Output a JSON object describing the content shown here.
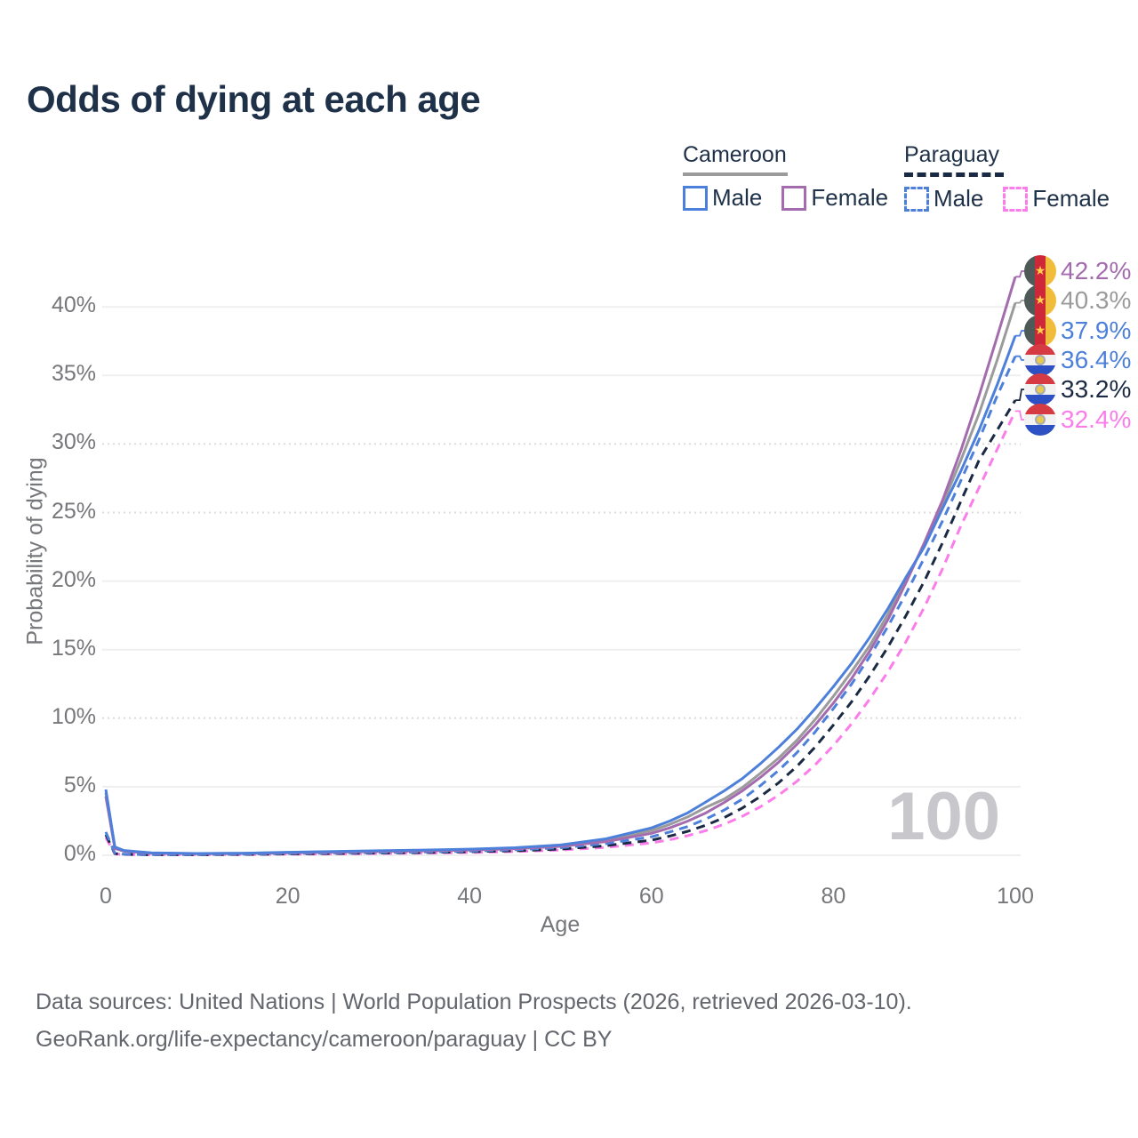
{
  "title": "Odds of dying at each age",
  "watermark": "100",
  "legend": {
    "groups": [
      {
        "name": "Cameroon",
        "line_style": "solid",
        "underline_color": "#9b9b9b",
        "items": [
          {
            "label": "Male",
            "color": "#4d80da"
          },
          {
            "label": "Female",
            "color": "#a46cae"
          }
        ]
      },
      {
        "name": "Paraguay",
        "line_style": "dashed",
        "underline_color": "#1b2a44",
        "items": [
          {
            "label": "Male",
            "color": "#4d80da"
          },
          {
            "label": "Female",
            "color": "#fb7de9"
          }
        ]
      }
    ]
  },
  "axes": {
    "y_label": "Probability of dying",
    "x_label": "Age",
    "y_ticks": [
      {
        "label": "0%",
        "value": 0,
        "dotted": false
      },
      {
        "label": "5%",
        "value": 5,
        "dotted": false
      },
      {
        "label": "10%",
        "value": 10,
        "dotted": true
      },
      {
        "label": "15%",
        "value": 15,
        "dotted": false
      },
      {
        "label": "20%",
        "value": 20,
        "dotted": false
      },
      {
        "label": "25%",
        "value": 25,
        "dotted": true
      },
      {
        "label": "30%",
        "value": 30,
        "dotted": true
      },
      {
        "label": "35%",
        "value": 35,
        "dotted": false
      },
      {
        "label": "40%",
        "value": 40,
        "dotted": false
      }
    ],
    "x_ticks": [
      {
        "label": "0",
        "value": 0
      },
      {
        "label": "20",
        "value": 20
      },
      {
        "label": "40",
        "value": 40
      },
      {
        "label": "60",
        "value": 60
      },
      {
        "label": "80",
        "value": 80
      },
      {
        "label": "100",
        "value": 100
      }
    ]
  },
  "end_labels": [
    {
      "text": "42.2%",
      "value": 42.2,
      "color": "#a46cae",
      "flag": "cameroon",
      "series": "Cameroon Female"
    },
    {
      "text": "40.3%",
      "value": 40.3,
      "color": "#9b9b9b",
      "flag": "cameroon",
      "series": "Cameroon Both sexes"
    },
    {
      "text": "37.9%",
      "value": 37.9,
      "color": "#4d80da",
      "flag": "cameroon",
      "series": "Cameroon Male"
    },
    {
      "text": "36.4%",
      "value": 36.4,
      "color": "#4d80da",
      "flag": "paraguay",
      "series": "Paraguay Male"
    },
    {
      "text": "33.2%",
      "value": 33.2,
      "color": "#1b2a44",
      "flag": "paraguay",
      "series": "Paraguay Both sexes"
    },
    {
      "text": "32.4%",
      "value": 32.4,
      "color": "#fb7de9",
      "flag": "paraguay",
      "series": "Paraguay Female"
    }
  ],
  "footer": {
    "line1": "Data sources: United Nations | World Population Prospects (2026, retrieved 2026-03-10).",
    "line2": "GeoRank.org/life-expectancy/cameroon/paraguay | CC BY"
  },
  "chart_data": {
    "type": "line",
    "title": "Odds of dying at each age",
    "xlabel": "Age",
    "ylabel": "Probability of dying",
    "xlim": [
      0,
      100
    ],
    "ylim_pct": [
      0,
      43
    ],
    "grid": true,
    "legend_position": "top-right",
    "series": [
      {
        "name": "Paraguay Female",
        "color": "#fb7de9",
        "dashed": true,
        "end_value_pct": 32.4,
        "points": [
          [
            0,
            1.3
          ],
          [
            1,
            0.1
          ],
          [
            2,
            0.06
          ],
          [
            5,
            0.04
          ],
          [
            10,
            0.04
          ],
          [
            15,
            0.05
          ],
          [
            20,
            0.08
          ],
          [
            25,
            0.1
          ],
          [
            30,
            0.13
          ],
          [
            35,
            0.16
          ],
          [
            40,
            0.2
          ],
          [
            45,
            0.27
          ],
          [
            50,
            0.38
          ],
          [
            55,
            0.58
          ],
          [
            60,
            0.9
          ],
          [
            62,
            1.13
          ],
          [
            64,
            1.43
          ],
          [
            66,
            1.8
          ],
          [
            68,
            2.27
          ],
          [
            70,
            2.85
          ],
          [
            72,
            3.55
          ],
          [
            74,
            4.4
          ],
          [
            76,
            5.4
          ],
          [
            78,
            6.6
          ],
          [
            80,
            8.0
          ],
          [
            82,
            9.6
          ],
          [
            84,
            11.4
          ],
          [
            86,
            13.4
          ],
          [
            88,
            15.6
          ],
          [
            90,
            18.1
          ],
          [
            92,
            20.9
          ],
          [
            94,
            24.0
          ],
          [
            96,
            26.8
          ],
          [
            98,
            29.6
          ],
          [
            100,
            32.4
          ]
        ]
      },
      {
        "name": "Paraguay Both sexes",
        "color": "#1b2a44",
        "dashed": true,
        "end_value_pct": 33.2,
        "points": [
          [
            0,
            1.5
          ],
          [
            1,
            0.12
          ],
          [
            2,
            0.07
          ],
          [
            5,
            0.04
          ],
          [
            10,
            0.04
          ],
          [
            15,
            0.06
          ],
          [
            20,
            0.1
          ],
          [
            25,
            0.13
          ],
          [
            30,
            0.16
          ],
          [
            35,
            0.2
          ],
          [
            40,
            0.25
          ],
          [
            45,
            0.33
          ],
          [
            50,
            0.45
          ],
          [
            55,
            0.7
          ],
          [
            60,
            1.1
          ],
          [
            62,
            1.4
          ],
          [
            64,
            1.75
          ],
          [
            66,
            2.2
          ],
          [
            68,
            2.75
          ],
          [
            70,
            3.45
          ],
          [
            72,
            4.3
          ],
          [
            74,
            5.3
          ],
          [
            76,
            6.5
          ],
          [
            78,
            7.9
          ],
          [
            80,
            9.5
          ],
          [
            82,
            11.2
          ],
          [
            84,
            13.1
          ],
          [
            86,
            15.2
          ],
          [
            88,
            17.5
          ],
          [
            90,
            20.0
          ],
          [
            92,
            22.8
          ],
          [
            94,
            25.8
          ],
          [
            96,
            28.8
          ],
          [
            98,
            31.0
          ],
          [
            100,
            33.2
          ]
        ]
      },
      {
        "name": "Paraguay Male",
        "color": "#4d80da",
        "dashed": true,
        "end_value_pct": 36.4,
        "points": [
          [
            0,
            1.7
          ],
          [
            1,
            0.14
          ],
          [
            2,
            0.08
          ],
          [
            5,
            0.05
          ],
          [
            10,
            0.05
          ],
          [
            15,
            0.08
          ],
          [
            20,
            0.13
          ],
          [
            25,
            0.17
          ],
          [
            30,
            0.2
          ],
          [
            35,
            0.24
          ],
          [
            40,
            0.3
          ],
          [
            45,
            0.4
          ],
          [
            50,
            0.55
          ],
          [
            55,
            0.85
          ],
          [
            60,
            1.35
          ],
          [
            62,
            1.7
          ],
          [
            64,
            2.1
          ],
          [
            66,
            2.65
          ],
          [
            68,
            3.3
          ],
          [
            70,
            4.1
          ],
          [
            72,
            5.1
          ],
          [
            74,
            6.2
          ],
          [
            76,
            7.5
          ],
          [
            78,
            9.0
          ],
          [
            80,
            10.7
          ],
          [
            82,
            12.5
          ],
          [
            84,
            14.5
          ],
          [
            86,
            16.7
          ],
          [
            88,
            19.1
          ],
          [
            90,
            21.7
          ],
          [
            92,
            24.4
          ],
          [
            94,
            27.3
          ],
          [
            96,
            30.3
          ],
          [
            98,
            33.5
          ],
          [
            100,
            36.4
          ]
        ]
      },
      {
        "name": "Cameroon Both sexes",
        "color": "#9b9b9b",
        "dashed": false,
        "end_value_pct": 40.3,
        "points": [
          [
            0,
            4.55
          ],
          [
            1,
            0.55
          ],
          [
            2,
            0.32
          ],
          [
            5,
            0.16
          ],
          [
            10,
            0.12
          ],
          [
            15,
            0.14
          ],
          [
            20,
            0.2
          ],
          [
            25,
            0.25
          ],
          [
            30,
            0.3
          ],
          [
            35,
            0.35
          ],
          [
            40,
            0.42
          ],
          [
            45,
            0.52
          ],
          [
            50,
            0.7
          ],
          [
            55,
            1.1
          ],
          [
            60,
            1.8
          ],
          [
            62,
            2.25
          ],
          [
            64,
            2.8
          ],
          [
            66,
            3.5
          ],
          [
            68,
            4.1
          ],
          [
            70,
            4.95
          ],
          [
            72,
            6.0
          ],
          [
            74,
            7.1
          ],
          [
            76,
            8.4
          ],
          [
            78,
            9.9
          ],
          [
            80,
            11.6
          ],
          [
            82,
            13.4
          ],
          [
            84,
            15.3
          ],
          [
            86,
            17.6
          ],
          [
            88,
            20.1
          ],
          [
            90,
            22.7
          ],
          [
            92,
            25.6
          ],
          [
            94,
            28.8
          ],
          [
            96,
            32.2
          ],
          [
            98,
            36.1
          ],
          [
            100,
            40.3
          ]
        ]
      },
      {
        "name": "Cameroon Female",
        "color": "#a46cae",
        "dashed": false,
        "end_value_pct": 42.2,
        "points": [
          [
            0,
            4.3
          ],
          [
            1,
            0.5
          ],
          [
            2,
            0.3
          ],
          [
            5,
            0.15
          ],
          [
            10,
            0.11
          ],
          [
            15,
            0.13
          ],
          [
            20,
            0.18
          ],
          [
            25,
            0.22
          ],
          [
            30,
            0.27
          ],
          [
            35,
            0.32
          ],
          [
            40,
            0.38
          ],
          [
            45,
            0.48
          ],
          [
            50,
            0.65
          ],
          [
            55,
            1.0
          ],
          [
            60,
            1.6
          ],
          [
            62,
            2.0
          ],
          [
            64,
            2.5
          ],
          [
            66,
            3.1
          ],
          [
            68,
            3.85
          ],
          [
            70,
            4.7
          ],
          [
            72,
            5.7
          ],
          [
            74,
            6.8
          ],
          [
            76,
            8.1
          ],
          [
            78,
            9.5
          ],
          [
            80,
            11.1
          ],
          [
            82,
            12.9
          ],
          [
            84,
            14.9
          ],
          [
            86,
            17.2
          ],
          [
            88,
            19.9
          ],
          [
            90,
            22.8
          ],
          [
            92,
            25.9
          ],
          [
            94,
            29.5
          ],
          [
            96,
            33.5
          ],
          [
            98,
            37.8
          ],
          [
            100,
            42.2
          ]
        ]
      },
      {
        "name": "Cameroon Male",
        "color": "#4d80da",
        "dashed": false,
        "end_value_pct": 37.9,
        "points": [
          [
            0,
            4.8
          ],
          [
            1,
            0.6
          ],
          [
            2,
            0.35
          ],
          [
            5,
            0.18
          ],
          [
            10,
            0.13
          ],
          [
            15,
            0.15
          ],
          [
            20,
            0.22
          ],
          [
            25,
            0.28
          ],
          [
            30,
            0.33
          ],
          [
            35,
            0.38
          ],
          [
            40,
            0.45
          ],
          [
            45,
            0.55
          ],
          [
            50,
            0.75
          ],
          [
            55,
            1.2
          ],
          [
            60,
            2.0
          ],
          [
            62,
            2.5
          ],
          [
            64,
            3.1
          ],
          [
            66,
            3.9
          ],
          [
            68,
            4.7
          ],
          [
            70,
            5.6
          ],
          [
            72,
            6.7
          ],
          [
            74,
            7.9
          ],
          [
            76,
            9.2
          ],
          [
            78,
            10.7
          ],
          [
            80,
            12.3
          ],
          [
            82,
            14.0
          ],
          [
            84,
            15.9
          ],
          [
            86,
            18.0
          ],
          [
            88,
            20.3
          ],
          [
            90,
            22.5
          ],
          [
            92,
            25.3
          ],
          [
            94,
            28.0
          ],
          [
            96,
            31.0
          ],
          [
            98,
            34.3
          ],
          [
            100,
            37.9
          ]
        ]
      }
    ]
  }
}
